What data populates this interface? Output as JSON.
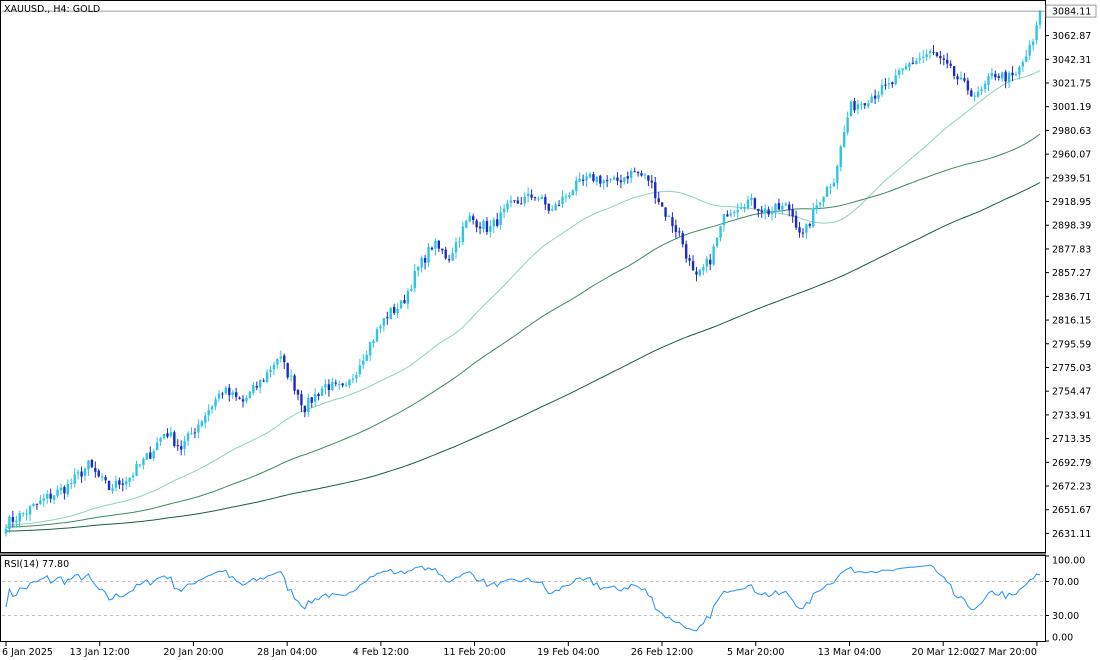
{
  "header": {
    "symbol_label": "XAUUSD., H4:  GOLD",
    "rsi_label": "RSI(14) 77.80"
  },
  "chart_data": [
    {
      "type": "candlestick",
      "title": "XAUUSD., H4:  GOLD",
      "ylim": [
        2615,
        3092
      ],
      "y_ticks": [
        "3062.87",
        "3042.31",
        "3021.75",
        "3001.19",
        "2980.63",
        "2960.07",
        "2939.51",
        "2918.95",
        "2898.39",
        "2877.83",
        "2857.27",
        "2836.71",
        "2816.15",
        "2795.59",
        "2775.03",
        "2754.47",
        "2733.91",
        "2713.35",
        "2692.79",
        "2672.23",
        "2651.67",
        "2631.11"
      ],
      "last_price_label": "3084.11",
      "x_tick_labels": [
        "6 Jan 2025",
        "13 Jan 12:00",
        "20 Jan 20:00",
        "28 Jan 04:00",
        "4 Feb 12:00",
        "11 Feb 20:00",
        "19 Feb 04:00",
        "26 Feb 12:00",
        "5 Mar 20:00",
        "13 Mar 04:00",
        "20 Mar 12:00",
        "27 Mar 20:00"
      ],
      "close_path": [
        [
          0,
          2640
        ],
        [
          4,
          2650
        ],
        [
          8,
          2662
        ],
        [
          12,
          2672
        ],
        [
          16,
          2690
        ],
        [
          20,
          2670
        ],
        [
          24,
          2680
        ],
        [
          28,
          2700
        ],
        [
          31,
          2720
        ],
        [
          34,
          2705
        ],
        [
          38,
          2730
        ],
        [
          42,
          2755
        ],
        [
          46,
          2745
        ],
        [
          50,
          2765
        ],
        [
          53,
          2785
        ],
        [
          56,
          2760
        ],
        [
          58,
          2740
        ],
        [
          62,
          2760
        ],
        [
          66,
          2755
        ],
        [
          70,
          2790
        ],
        [
          74,
          2820
        ],
        [
          77,
          2830
        ],
        [
          80,
          2860
        ],
        [
          83,
          2882
        ],
        [
          86,
          2870
        ],
        [
          90,
          2905
        ],
        [
          94,
          2895
        ],
        [
          98,
          2915
        ],
        [
          103,
          2925
        ],
        [
          106,
          2910
        ],
        [
          110,
          2930
        ],
        [
          114,
          2940
        ],
        [
          118,
          2935
        ],
        [
          122,
          2945
        ],
        [
          125,
          2938
        ],
        [
          128,
          2910
        ],
        [
          131,
          2890
        ],
        [
          134,
          2850
        ],
        [
          137,
          2870
        ],
        [
          140,
          2910
        ],
        [
          144,
          2920
        ],
        [
          148,
          2910
        ],
        [
          152,
          2915
        ],
        [
          155,
          2888
        ],
        [
          158,
          2920
        ],
        [
          161,
          2940
        ],
        [
          164,
          3000
        ],
        [
          168,
          3010
        ],
        [
          172,
          3020
        ],
        [
          176,
          3040
        ],
        [
          180,
          3048
        ],
        [
          183,
          3035
        ],
        [
          186,
          3020
        ],
        [
          189,
          3010
        ],
        [
          192,
          3030
        ],
        [
          196,
          3025
        ],
        [
          200,
          3060
        ],
        [
          201,
          3084.11
        ]
      ],
      "moving_averages": [
        {
          "period": 50,
          "color": "#8fd3b5",
          "kind": "SMA"
        },
        {
          "period": 100,
          "color": "#3d8b5a",
          "kind": "SMA"
        },
        {
          "period": 200,
          "color": "#1f5c3a",
          "kind": "SMA"
        }
      ],
      "colors": {
        "bull": "#2ec4e8",
        "bear": "#1c2bc4",
        "price_line": "#808080"
      }
    },
    {
      "type": "line",
      "title": "RSI(14) 77.80",
      "ylim": [
        0,
        100
      ],
      "y_ticks": [
        "100.00",
        "70.00",
        "30.00",
        "0.00"
      ],
      "levels": [
        70,
        30
      ],
      "last_value": 77.8,
      "color": "#1e90ff"
    }
  ]
}
